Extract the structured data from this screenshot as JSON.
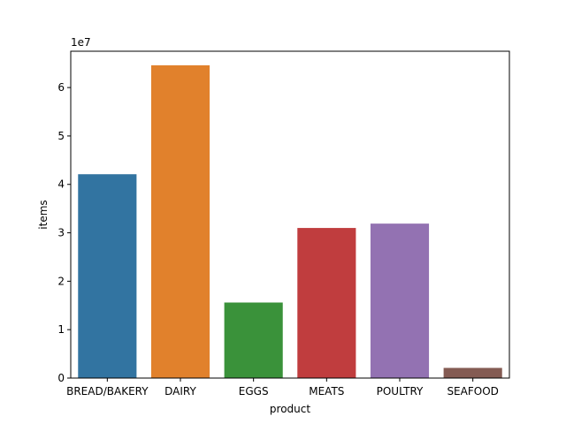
{
  "chart_data": {
    "type": "bar",
    "categories": [
      "BREAD/BAKERY",
      "DAIRY",
      "EGGS",
      "MEATS",
      "POULTRY",
      "SEAFOOD"
    ],
    "values": [
      42100000,
      64600000,
      15600000,
      31000000,
      31900000,
      2100000
    ],
    "colors": [
      "#3274a1",
      "#e1812c",
      "#3a923a",
      "#c03d3e",
      "#9372b2",
      "#845b53"
    ],
    "xlabel": "product",
    "ylabel": "items",
    "ylim": [
      0,
      67500000
    ],
    "yticks": [
      0,
      10000000,
      20000000,
      30000000,
      40000000,
      50000000,
      60000000
    ],
    "ytick_labels": [
      "0",
      "1",
      "2",
      "3",
      "4",
      "5",
      "6"
    ],
    "offset_text": "1e7",
    "grid": false,
    "legend": false
  }
}
